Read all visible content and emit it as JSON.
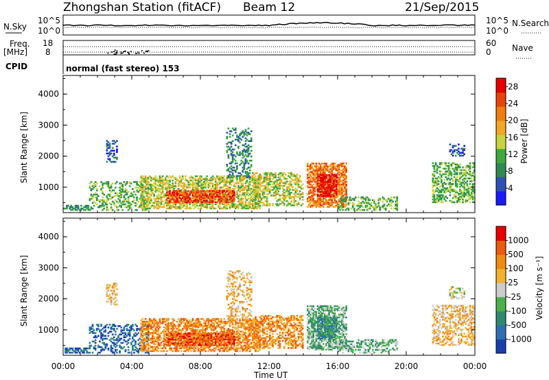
{
  "header": {
    "station": "Zhongshan Station (fitACF)",
    "beam": "Beam 12",
    "date": "21/Sep/2015"
  },
  "top_panels": {
    "nsky_label": "N.Sky",
    "nsearch_label": "N.Search",
    "nsky_ticks": [
      "10^5",
      "10^0"
    ],
    "nsearch_ticks": [
      "10^5",
      "10^0"
    ],
    "freq_label_1": "Freq.",
    "freq_label_2": "[MHz]",
    "freq_ticks": [
      "18",
      "8"
    ],
    "nave_label": "Nave",
    "nave_ticks": [
      "60",
      "0"
    ],
    "cpid_label": "CPID",
    "cpid_text": "normal (fast stereo) 153"
  },
  "colors": {
    "power_scale": [
      "#1a1aff",
      "#2d52b5",
      "#2f8a54",
      "#3caa3c",
      "#c7d43b",
      "#f5a623",
      "#f07d0e",
      "#e8430b",
      "#e80000"
    ],
    "velocity_scale": [
      "#1a3fb0",
      "#2e6fb3",
      "#2f8a6e",
      "#4cb04a",
      "#cccccc",
      "#f3b22b",
      "#f08a10",
      "#ec5a0c",
      "#e80000"
    ]
  },
  "chart_data": [
    {
      "type": "heatmap",
      "name_of_quantity": "Power",
      "xlabel": "Time UT",
      "ylabel": "Slant Range [km]",
      "x_ticks": [
        "00:00",
        "04:00",
        "08:00",
        "12:00",
        "16:00",
        "20:00",
        "00:00"
      ],
      "y_ticks": [
        "1000",
        "2000",
        "3000",
        "4000"
      ],
      "xlim_hours": [
        0,
        24
      ],
      "ylim_km": [
        180,
        4600
      ],
      "colorbar_label": "Power [dB]",
      "colorbar_ticks": [
        "4",
        "8",
        "12",
        "16",
        "20",
        "24",
        "28"
      ],
      "colorbar_range": [
        0,
        30
      ]
    },
    {
      "type": "heatmap",
      "name_of_quantity": "Velocity",
      "xlabel": "Time UT",
      "ylabel": "Slant Range [km]",
      "x_ticks": [
        "00:00",
        "04:00",
        "08:00",
        "12:00",
        "16:00",
        "20:00",
        "00:00"
      ],
      "y_ticks": [
        "1000",
        "2000",
        "3000",
        "4000"
      ],
      "xlim_hours": [
        0,
        24
      ],
      "ylim_km": [
        180,
        4600
      ],
      "colorbar_label": "Velocity [m s⁻¹]",
      "colorbar_ticks": [
        "1000",
        "500",
        "100",
        "25",
        "-25",
        "-100",
        "-500",
        "-1000"
      ]
    }
  ],
  "x_axis_title": "Time UT"
}
